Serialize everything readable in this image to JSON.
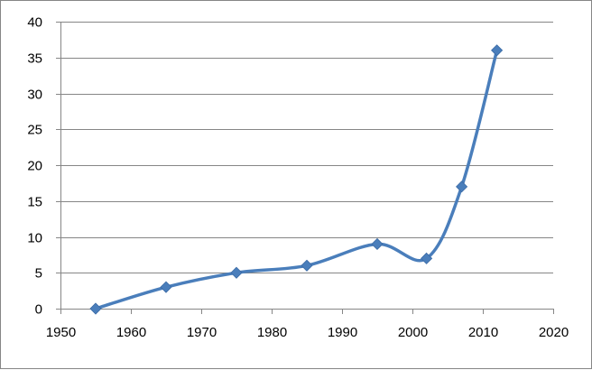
{
  "chart_data": {
    "type": "scatter",
    "mode": "smooth-line-with-markers",
    "title": "",
    "xlabel": "",
    "ylabel": "",
    "xlim": [
      1950,
      2020
    ],
    "ylim": [
      0,
      40
    ],
    "x_ticks": [
      1950,
      1960,
      1970,
      1980,
      1990,
      2000,
      2010,
      2020
    ],
    "y_ticks": [
      0,
      5,
      10,
      15,
      20,
      25,
      30,
      35,
      40
    ],
    "grid": "horizontal",
    "legend": "none",
    "series": [
      {
        "color": "#4a7ebb",
        "marker": "diamond",
        "x": [
          1955,
          1965,
          1975,
          1985,
          1995,
          2002,
          2007,
          2012
        ],
        "y": [
          0,
          3,
          5,
          6,
          9,
          7,
          17,
          36
        ]
      }
    ]
  }
}
